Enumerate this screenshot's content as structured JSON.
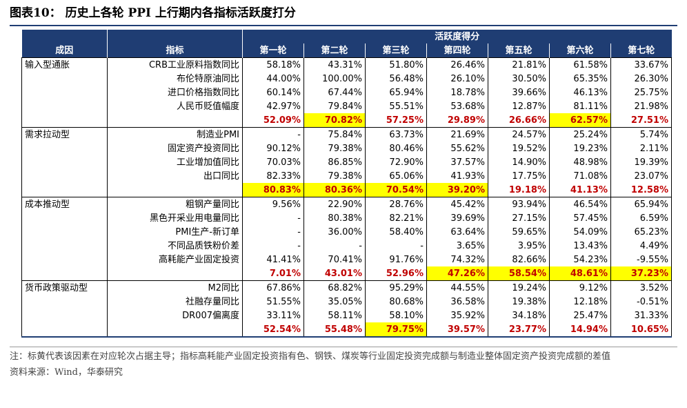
{
  "title": "图表10：  历史上各轮 PPI 上行期内各指标活跃度打分",
  "header": {
    "group_label": "活跃度得分",
    "cause_label": "成因",
    "indicator_label": "指标",
    "rounds": [
      "第一轮",
      "第二轮",
      "第三轮",
      "第四轮",
      "第五轮",
      "第六轮",
      "第七轮"
    ]
  },
  "rows": [
    {
      "cause": "输入型通胀",
      "indicator": "CRB工业原料指数同比",
      "values": [
        "58.18%",
        "43.31%",
        "51.80%",
        "26.46%",
        "21.81%",
        "61.58%",
        "33.67%"
      ]
    },
    {
      "cause": "",
      "indicator": "布伦特原油同比",
      "values": [
        "44.00%",
        "100.00%",
        "56.48%",
        "26.10%",
        "30.50%",
        "65.35%",
        "26.30%"
      ]
    },
    {
      "cause": "",
      "indicator": "进口价格指数同比",
      "values": [
        "60.14%",
        "67.44%",
        "65.94%",
        "18.78%",
        "39.66%",
        "46.13%",
        "25.75%"
      ]
    },
    {
      "cause": "",
      "indicator": "人民币贬值幅度",
      "values": [
        "42.97%",
        "79.84%",
        "55.51%",
        "53.68%",
        "12.87%",
        "81.11%",
        "21.98%"
      ]
    },
    {
      "cause": "",
      "indicator": "",
      "summary": true,
      "values": [
        "52.09%",
        "70.82%",
        "57.25%",
        "29.89%",
        "26.66%",
        "62.57%",
        "27.51%"
      ],
      "highlight": [
        false,
        true,
        false,
        false,
        false,
        true,
        false
      ]
    },
    {
      "cause": "需求拉动型",
      "indicator": "制造业PMI",
      "values": [
        "-",
        "75.84%",
        "63.73%",
        "21.69%",
        "24.57%",
        "25.24%",
        "5.74%"
      ]
    },
    {
      "cause": "",
      "indicator": "固定资产投资同比",
      "values": [
        "90.12%",
        "79.38%",
        "80.46%",
        "55.62%",
        "19.52%",
        "19.23%",
        "2.11%"
      ]
    },
    {
      "cause": "",
      "indicator": "工业增加值同比",
      "values": [
        "70.03%",
        "86.85%",
        "72.90%",
        "37.57%",
        "14.90%",
        "48.98%",
        "19.39%"
      ]
    },
    {
      "cause": "",
      "indicator": "出口同比",
      "values": [
        "82.33%",
        "79.38%",
        "65.06%",
        "41.93%",
        "17.75%",
        "71.08%",
        "23.07%"
      ]
    },
    {
      "cause": "",
      "indicator": "",
      "summary": true,
      "values": [
        "80.83%",
        "80.36%",
        "70.54%",
        "39.20%",
        "19.18%",
        "41.13%",
        "12.58%"
      ],
      "highlight": [
        true,
        true,
        true,
        true,
        false,
        false,
        false
      ]
    },
    {
      "cause": "成本推动型",
      "indicator": "粗钢产量同比",
      "values": [
        "9.56%",
        "22.90%",
        "28.76%",
        "45.42%",
        "93.94%",
        "46.54%",
        "65.94%"
      ]
    },
    {
      "cause": "",
      "indicator": "黑色开采业用电量同比",
      "values": [
        "-",
        "80.38%",
        "82.21%",
        "39.69%",
        "27.15%",
        "57.45%",
        "6.59%"
      ]
    },
    {
      "cause": "",
      "indicator": "PMI生产-新订单",
      "values": [
        "-",
        "36.00%",
        "58.40%",
        "63.64%",
        "59.65%",
        "54.09%",
        "65.23%"
      ]
    },
    {
      "cause": "",
      "indicator": "不同品质铁粉价差",
      "values": [
        "-",
        "-",
        "-",
        "3.65%",
        "3.95%",
        "13.43%",
        "4.49%"
      ]
    },
    {
      "cause": "",
      "indicator": "高耗能产业固定投资",
      "values": [
        "41.41%",
        "70.41%",
        "91.76%",
        "74.32%",
        "82.66%",
        "54.23%",
        "-9.55%"
      ]
    },
    {
      "cause": "",
      "indicator": "",
      "summary": true,
      "values": [
        "7.01%",
        "43.01%",
        "52.96%",
        "47.26%",
        "58.54%",
        "48.61%",
        "37.23%"
      ],
      "highlight": [
        false,
        false,
        false,
        true,
        true,
        true,
        true
      ]
    },
    {
      "cause": "货币政策驱动型",
      "indicator": "M2同比",
      "values": [
        "67.86%",
        "68.82%",
        "95.29%",
        "44.55%",
        "19.24%",
        "9.12%",
        "3.52%"
      ]
    },
    {
      "cause": "",
      "indicator": "社融存量同比",
      "values": [
        "51.55%",
        "35.05%",
        "80.68%",
        "36.58%",
        "19.38%",
        "12.18%",
        "-0.51%"
      ]
    },
    {
      "cause": "",
      "indicator": "DR007偏离度",
      "values": [
        "33.11%",
        "58.11%",
        "58.10%",
        "35.92%",
        "34.18%",
        "25.47%",
        "31.33%"
      ]
    },
    {
      "cause": "",
      "indicator": "",
      "summary": true,
      "values": [
        "52.54%",
        "55.48%",
        "79.75%",
        "39.57%",
        "23.77%",
        "14.94%",
        "10.65%"
      ],
      "highlight": [
        false,
        false,
        true,
        false,
        false,
        false,
        false
      ]
    }
  ],
  "notes": {
    "note": "注：标黄代表该因素在对应轮次占据主导；指标高耗能产业固定投资指有色、钢铁、煤炭等行业固定投资完成额与制造业整体固定资产投资完成额的差值",
    "source": "资料来源：Wind，华泰研究"
  },
  "colors": {
    "header_bg": "#1f3d73",
    "highlight": "#ffff00",
    "summary_text": "#c00000"
  }
}
